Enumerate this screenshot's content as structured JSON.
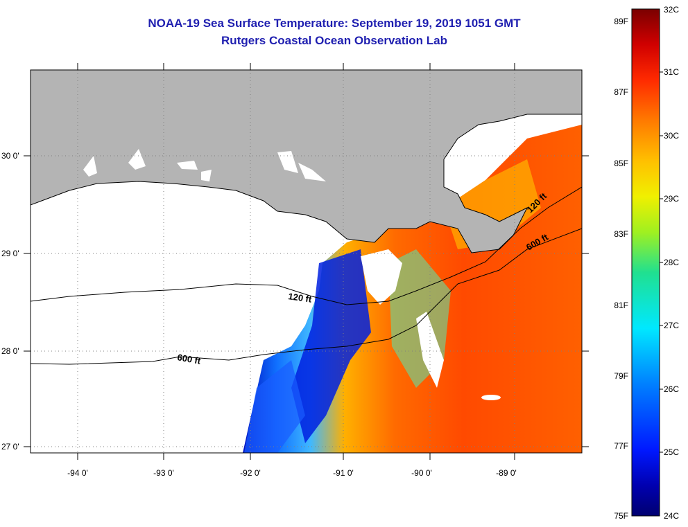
{
  "title_line1": "NOAA-19 Sea Surface Temperature:  September 19, 2019 1051 GMT",
  "title_line2": "Rutgers Coastal Ocean Observation Lab",
  "lon_labels": [
    "-94 0'",
    "-93 0'",
    "-92 0'",
    "-91 0'",
    "-90 0'",
    "-89 0'"
  ],
  "lat_labels": [
    "30 0'",
    "29 0'",
    "28 0'",
    "27 0'"
  ],
  "contours": [
    {
      "label": "120 ft"
    },
    {
      "label": "600 ft"
    },
    {
      "label": "120 ft"
    },
    {
      "label": "600 ft"
    }
  ],
  "colorbar": {
    "fahrenheit": [
      "89F",
      "87F",
      "85F",
      "83F",
      "81F",
      "79F",
      "77F",
      "75F"
    ],
    "celsius": [
      "32C",
      "31C",
      "30C",
      "29C",
      "28C",
      "27C",
      "26C",
      "25C",
      "24C"
    ],
    "min_c": 24,
    "max_c": 32
  },
  "colors": {
    "land": "#b4b4b4",
    "no_data": "#ffffff",
    "title": "#1f1fb0"
  }
}
